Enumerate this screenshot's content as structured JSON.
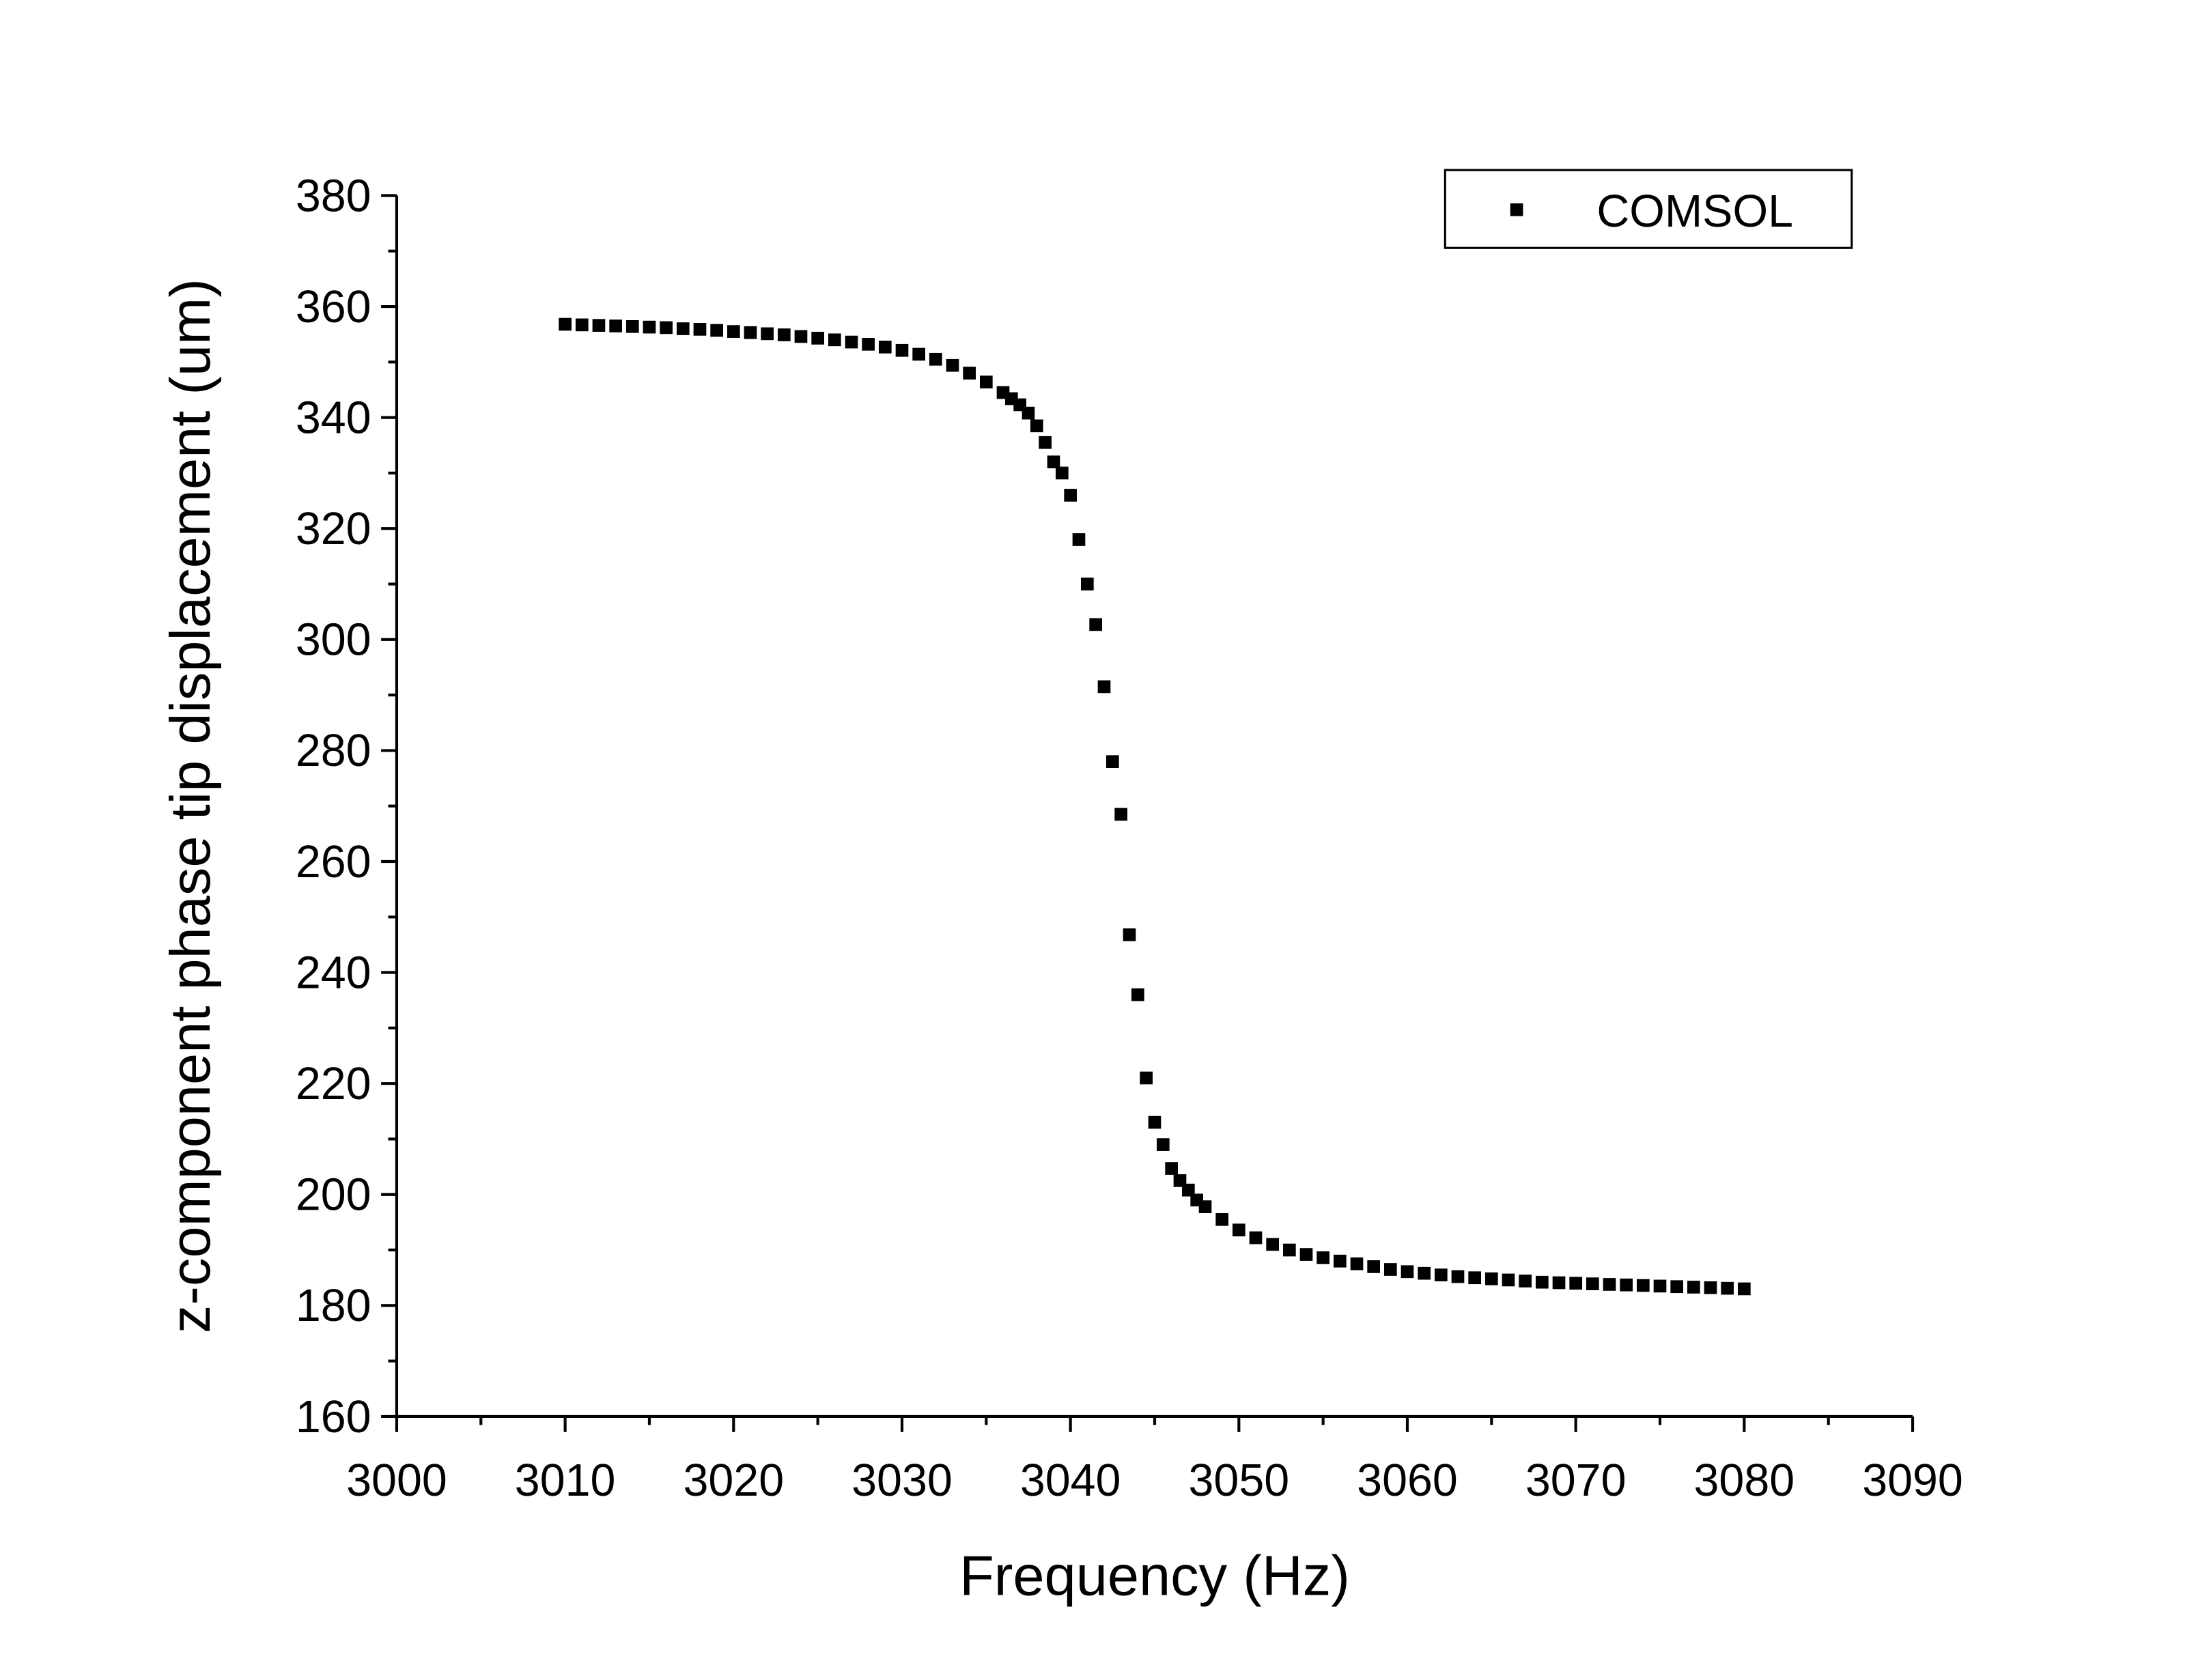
{
  "chart_data": {
    "type": "scatter",
    "xlabel": "Frequency (Hz)",
    "ylabel": "z-component phase tip displacement (um)",
    "xlim": [
      3000,
      3090
    ],
    "xticks": [
      3000,
      3010,
      3020,
      3030,
      3040,
      3050,
      3060,
      3070,
      3080,
      3090
    ],
    "ylim": [
      160,
      380
    ],
    "yticks": [
      160,
      180,
      200,
      220,
      240,
      260,
      280,
      300,
      320,
      340,
      360,
      380
    ],
    "grid": false,
    "legend": "upper right",
    "series": [
      {
        "name": "COMSOL",
        "color": "#000000",
        "x": [
          3010,
          3011,
          3012,
          3013,
          3014,
          3015,
          3016,
          3017,
          3018,
          3019,
          3020,
          3021,
          3022,
          3023,
          3024,
          3025,
          3026,
          3027,
          3028,
          3029,
          3030,
          3031,
          3032,
          3033,
          3034,
          3035,
          3036,
          3036.5,
          3037,
          3037.5,
          3038,
          3038.5,
          3039,
          3039.5,
          3040,
          3040.5,
          3041,
          3041.5,
          3042,
          3042.5,
          3043,
          3043.5,
          3044,
          3044.5,
          3045,
          3045.5,
          3046,
          3046.5,
          3047,
          3047.5,
          3048,
          3049,
          3050,
          3051,
          3052,
          3053,
          3054,
          3055,
          3056,
          3057,
          3058,
          3059,
          3060,
          3061,
          3062,
          3063,
          3064,
          3065,
          3066,
          3067,
          3068,
          3069,
          3070,
          3071,
          3072,
          3073,
          3074,
          3075,
          3076,
          3077,
          3078,
          3079,
          3080
        ],
        "values": [
          356.8,
          356.7,
          356.6,
          356.5,
          356.4,
          356.3,
          356.2,
          356.0,
          355.9,
          355.7,
          355.5,
          355.3,
          355.1,
          354.9,
          354.6,
          354.3,
          354.0,
          353.6,
          353.2,
          352.7,
          352.1,
          351.4,
          350.5,
          349.4,
          348.0,
          346.4,
          344.5,
          343.4,
          342.3,
          340.8,
          338.5,
          335.5,
          332.0,
          330.0,
          326.0,
          318.0,
          310.0,
          302.7,
          291.5,
          278.0,
          268.5,
          246.8,
          236.0,
          221.0,
          213.0,
          209.0,
          204.7,
          202.5,
          200.8,
          199.0,
          197.8,
          195.5,
          193.6,
          192.2,
          191.0,
          190.0,
          189.2,
          188.6,
          188.0,
          187.5,
          187.0,
          186.5,
          186.1,
          185.8,
          185.5,
          185.2,
          185.0,
          184.8,
          184.6,
          184.4,
          184.2,
          184.1,
          184.0,
          183.9,
          183.8,
          183.7,
          183.6,
          183.5,
          183.4,
          183.3,
          183.2,
          183.1,
          183.0
        ]
      }
    ]
  }
}
